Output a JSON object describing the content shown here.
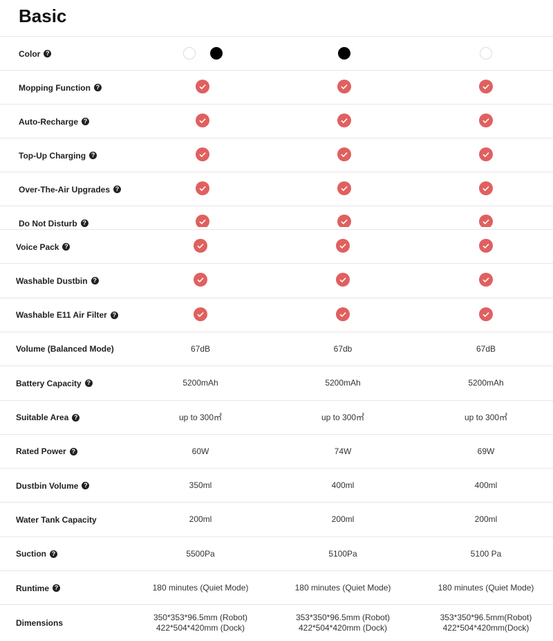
{
  "title": "Basic",
  "rows": [
    {
      "label": "Color",
      "help": true,
      "colors": [
        [
          "#ffffff",
          "#000000"
        ],
        [
          "#000000"
        ],
        [
          "#ffffff"
        ]
      ]
    },
    {
      "label": "Mopping Function",
      "help": true,
      "checks": [
        true,
        true,
        true
      ]
    },
    {
      "label": "Auto-Recharge",
      "help": true,
      "checks": [
        true,
        true,
        true
      ]
    },
    {
      "label": "Top-Up Charging",
      "help": true,
      "checks": [
        true,
        true,
        true
      ]
    },
    {
      "label": "Over-The-Air Upgrades",
      "help": true,
      "checks": [
        true,
        true,
        true
      ]
    },
    {
      "label": "Do Not Disturb",
      "help": true,
      "checks": [
        true,
        true,
        true
      ]
    },
    {
      "label": "Voice Pack",
      "help": true,
      "checks": [
        true,
        true,
        true
      ]
    },
    {
      "label": "Washable Dustbin",
      "help": true,
      "checks": [
        true,
        true,
        true
      ]
    },
    {
      "label": "Washable E11 Air Filter",
      "help": true,
      "checks": [
        true,
        true,
        true
      ]
    },
    {
      "label": "Volume (Balanced Mode)",
      "help": false,
      "cells": [
        [
          "67dB"
        ],
        [
          "67db"
        ],
        [
          "67dB"
        ]
      ]
    },
    {
      "label": "Battery Capacity",
      "help": true,
      "cells": [
        [
          "5200mAh"
        ],
        [
          "5200mAh"
        ],
        [
          "5200mAh"
        ]
      ]
    },
    {
      "label": "Suitable Area",
      "help": true,
      "cells": [
        [
          "up to 300㎡"
        ],
        [
          "up to 300㎡"
        ],
        [
          "up to 300㎡"
        ]
      ]
    },
    {
      "label": "Rated Power",
      "help": true,
      "cells": [
        [
          "60W"
        ],
        [
          "74W"
        ],
        [
          "69W"
        ]
      ]
    },
    {
      "label": "Dustbin Volume",
      "help": true,
      "cells": [
        [
          "350ml"
        ],
        [
          "400ml"
        ],
        [
          "400ml"
        ]
      ]
    },
    {
      "label": "Water Tank Capacity",
      "help": false,
      "cells": [
        [
          "200ml"
        ],
        [
          "200ml"
        ],
        [
          "200ml"
        ]
      ]
    },
    {
      "label": "Suction",
      "help": true,
      "cells": [
        [
          "5500Pa"
        ],
        [
          "5100Pa"
        ],
        [
          "5100 Pa"
        ]
      ]
    },
    {
      "label": "Runtime",
      "help": true,
      "cells": [
        [
          "180 minutes (Quiet Mode)"
        ],
        [
          "180 minutes (Quiet Mode)"
        ],
        [
          "180 minutes (Quiet Mode)"
        ]
      ]
    },
    {
      "label": "Dimensions",
      "help": false,
      "cells": [
        [
          "350*353*96.5mm (Robot)",
          "422*504*420mm (Dock)"
        ],
        [
          "353*350*96.5mm (Robot)",
          "422*504*420mm (Dock)"
        ],
        [
          "353*350*96.5mm(Robot)",
          "422*504*420mm(Dock)"
        ]
      ]
    }
  ]
}
